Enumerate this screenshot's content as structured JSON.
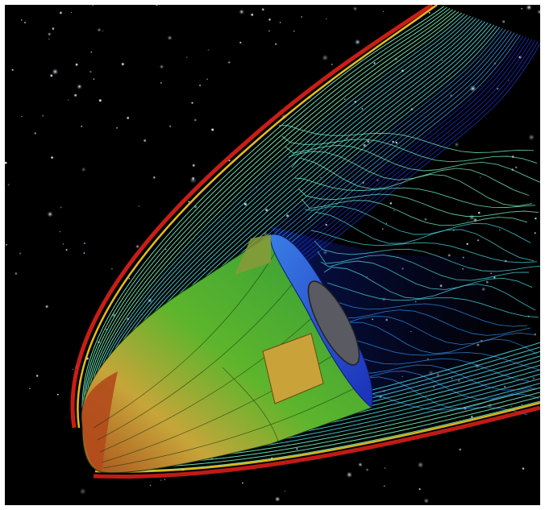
{
  "image": {
    "subject": "cfd-hypersonic-reentry-vehicle",
    "background_color": "#000000",
    "frame_color": "#ffffff",
    "palette": {
      "shock_outer": "#e0201a",
      "shock_mid": "#ffd21a",
      "streamline_hi": "#7affc9",
      "streamline_cyan": "#4fe0e6",
      "streamline_mid": "#2d8fe8",
      "wake_low": "#1530c8",
      "body_green": "#3fae2a",
      "body_yellow": "#bcd22c",
      "heat_shield": "#c05a1e"
    }
  }
}
